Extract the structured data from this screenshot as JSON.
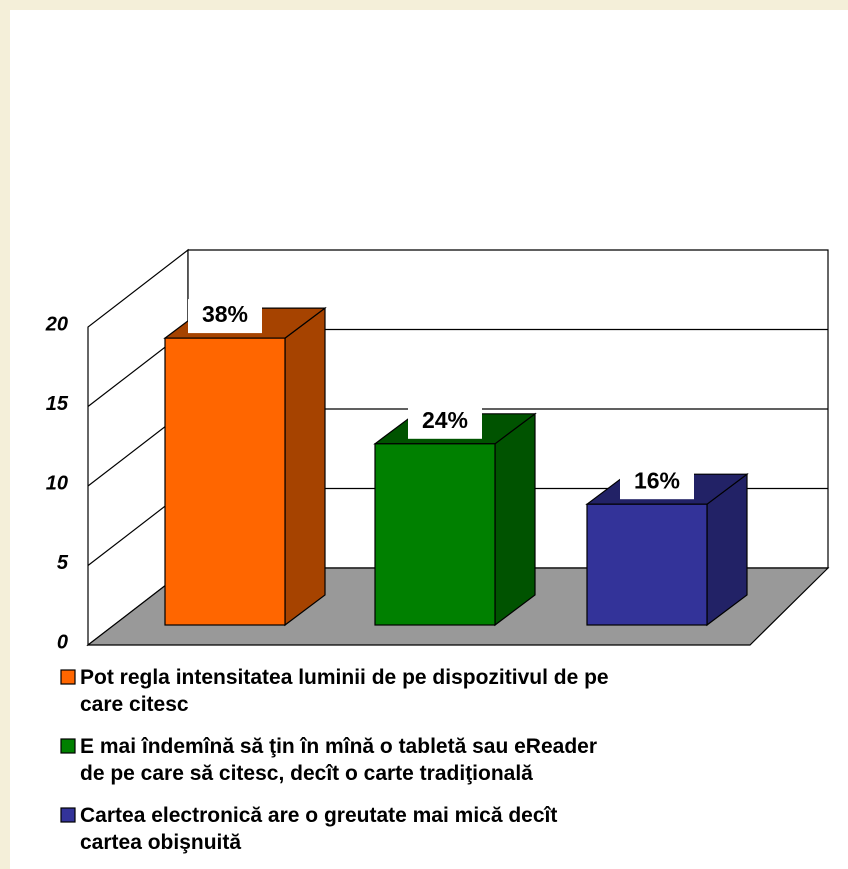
{
  "chart_data": {
    "type": "bar3d",
    "categories": [
      "Pot regla intensitatea luminii de pe dispozitivul de pe care citesc",
      "E mai îndemînă să ţin în mînă o tabletă sau eReader de pe care să citesc, decît o carte tradiţională",
      "Cartea electronică are o greutate mai mică decît cartea obişnuită"
    ],
    "legend_lines": [
      [
        "Pot regla intensitatea luminii de pe dispozitivul de pe",
        "care citesc"
      ],
      [
        "E mai îndemînă să ţin în mînă o tabletă sau eReader",
        "de pe care să citesc, decît o carte tradiţională"
      ],
      [
        "Cartea electronică are o greutate mai mică decît",
        "cartea obişnuită"
      ]
    ],
    "values": [
      19,
      12,
      8
    ],
    "percent_labels": [
      "38%",
      "24%",
      "16%"
    ],
    "colors": [
      "#ff6600",
      "#008000",
      "#333399"
    ],
    "side_colors": [
      "#a64300",
      "#005300",
      "#222266"
    ],
    "ylim": [
      0,
      20
    ],
    "yticks": [
      0,
      5,
      10,
      15,
      20
    ],
    "grid": true
  }
}
